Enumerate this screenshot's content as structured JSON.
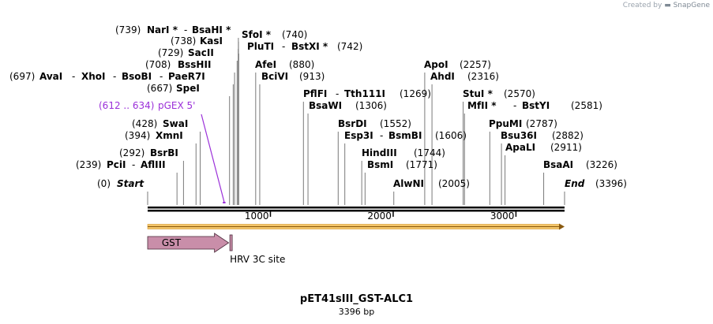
{
  "credit": {
    "prefix": "Created by",
    "brand": "SnapGene"
  },
  "plasmid": {
    "name": "pET41sIII_GST-ALC1",
    "length_label": "3396 bp",
    "length": 3396
  },
  "axis": {
    "ticks": [
      {
        "value": 1000,
        "label": "1000"
      },
      {
        "value": 2000,
        "label": "2000"
      },
      {
        "value": 3000,
        "label": "3000"
      }
    ]
  },
  "label_rows": [
    {
      "left": [
        {
          "text": "(739)",
          "bold": false
        },
        {
          "text": "NarI *",
          "bold": true
        },
        {
          "text": "-",
          "bold": false
        },
        {
          "text": "BsaHI *",
          "bold": true
        }
      ]
    },
    {
      "left": [
        {
          "text": "SfoI *",
          "bold": true
        },
        {
          "text": "(740)",
          "bold": false
        }
      ]
    },
    {
      "left": [
        {
          "text": "(738)",
          "bold": false
        },
        {
          "text": "KasI",
          "bold": true
        }
      ]
    },
    {
      "left": [
        {
          "text": "PluTI",
          "bold": true
        },
        {
          "text": "-",
          "bold": false
        },
        {
          "text": "BstXI *",
          "bold": true
        },
        {
          "text": "(742)",
          "bold": false
        }
      ]
    },
    {
      "left": [
        {
          "text": "(729)",
          "bold": false
        },
        {
          "text": "SacII",
          "bold": true
        }
      ]
    },
    {
      "left": [
        {
          "text": "(708)",
          "bold": false
        },
        {
          "text": "BssHII",
          "bold": true
        }
      ]
    },
    {
      "left": [
        {
          "text": "AfeI",
          "bold": true
        },
        {
          "text": "(880)",
          "bold": false
        }
      ]
    },
    {
      "left": [
        {
          "text": "ApoI",
          "bold": true
        },
        {
          "text": "(2257)",
          "bold": false
        }
      ]
    },
    {
      "left": [
        {
          "text": "(697)",
          "bold": false
        },
        {
          "text": "AvaI",
          "bold": true
        },
        {
          "text": "-",
          "bold": false
        },
        {
          "text": "XhoI",
          "bold": true
        },
        {
          "text": "-",
          "bold": false
        },
        {
          "text": "BsoBI",
          "bold": true
        },
        {
          "text": "-",
          "bold": false
        },
        {
          "text": "PaeR7I",
          "bold": true
        }
      ]
    },
    {
      "left": [
        {
          "text": "BciVI",
          "bold": true
        },
        {
          "text": "(913)",
          "bold": false
        }
      ]
    },
    {
      "left": [
        {
          "text": "AhdI",
          "bold": true
        },
        {
          "text": "(2316)",
          "bold": false
        }
      ]
    },
    {
      "left": [
        {
          "text": "(667)",
          "bold": false
        },
        {
          "text": "SpeI",
          "bold": true
        }
      ]
    },
    {
      "left": [
        {
          "text": "PflFI",
          "bold": true
        },
        {
          "text": "-",
          "bold": false
        },
        {
          "text": "Tth111I",
          "bold": true
        },
        {
          "text": "(1269)",
          "bold": false
        }
      ]
    },
    {
      "left": [
        {
          "text": "StuI *",
          "bold": true
        },
        {
          "text": "(2570)",
          "bold": false
        }
      ]
    },
    {
      "left": [
        {
          "text": "BsaWI",
          "bold": true
        },
        {
          "text": "(1306)",
          "bold": false
        }
      ]
    },
    {
      "left": [
        {
          "text": "MfII *",
          "bold": true
        },
        {
          "text": "-",
          "bold": false
        },
        {
          "text": "BstYI",
          "bold": true
        },
        {
          "text": "(2581)",
          "bold": false
        }
      ]
    },
    {
      "left": [
        {
          "text": "(612 .. 634)",
          "bold": false
        },
        {
          "text": "pGEX 5'",
          "bold": false
        }
      ]
    },
    {
      "left": [
        {
          "text": "(428)",
          "bold": false
        },
        {
          "text": "SwaI",
          "bold": true
        }
      ]
    },
    {
      "left": [
        {
          "text": "BsrDI",
          "bold": true
        },
        {
          "text": "(1552)",
          "bold": false
        }
      ]
    },
    {
      "left": [
        {
          "text": "PpuMI",
          "bold": true
        },
        {
          "text": "(2787)",
          "bold": false
        }
      ]
    },
    {
      "left": [
        {
          "text": "(394)",
          "bold": false
        },
        {
          "text": "XmnI",
          "bold": true
        }
      ]
    },
    {
      "left": [
        {
          "text": "Esp3I",
          "bold": true
        },
        {
          "text": "-",
          "bold": false
        },
        {
          "text": "BsmBI",
          "bold": true
        },
        {
          "text": "(1606)",
          "bold": false
        }
      ]
    },
    {
      "left": [
        {
          "text": "Bsu36I",
          "bold": true
        },
        {
          "text": "(2882)",
          "bold": false
        }
      ]
    },
    {
      "left": [
        {
          "text": "ApaLI",
          "bold": true
        },
        {
          "text": "(2911)",
          "bold": false
        }
      ]
    },
    {
      "left": [
        {
          "text": "(292)",
          "bold": false
        },
        {
          "text": "BsrBI",
          "bold": true
        }
      ]
    },
    {
      "left": [
        {
          "text": "HindIII",
          "bold": true
        },
        {
          "text": "(1744)",
          "bold": false
        }
      ]
    },
    {
      "left": [
        {
          "text": "(239)",
          "bold": false
        },
        {
          "text": "PciI",
          "bold": true
        },
        {
          "text": "-",
          "bold": false
        },
        {
          "text": "AflIII",
          "bold": true
        }
      ]
    },
    {
      "left": [
        {
          "text": "BsmI",
          "bold": true
        },
        {
          "text": "(1771)",
          "bold": false
        }
      ]
    },
    {
      "left": [
        {
          "text": "BsaAI",
          "bold": true
        },
        {
          "text": "(3226)",
          "bold": false
        }
      ]
    },
    {
      "left": [
        {
          "text": "(0)",
          "bold": false
        },
        {
          "text": "Start",
          "bold": true
        }
      ]
    },
    {
      "left": [
        {
          "text": "AlwNI",
          "bold": true
        },
        {
          "text": "(2005)",
          "bold": false
        }
      ]
    },
    {
      "left": [
        {
          "text": "End",
          "bold": true
        },
        {
          "text": "(3396)",
          "bold": false
        }
      ]
    }
  ],
  "sites": [
    {
      "pos": 0
    },
    {
      "pos": 239
    },
    {
      "pos": 292
    },
    {
      "pos": 394
    },
    {
      "pos": 428
    },
    {
      "pos": 667
    },
    {
      "pos": 697
    },
    {
      "pos": 708
    },
    {
      "pos": 729
    },
    {
      "pos": 738
    },
    {
      "pos": 739
    },
    {
      "pos": 740
    },
    {
      "pos": 742
    },
    {
      "pos": 880
    },
    {
      "pos": 913
    },
    {
      "pos": 1269
    },
    {
      "pos": 1306
    },
    {
      "pos": 1552
    },
    {
      "pos": 1606
    },
    {
      "pos": 1744
    },
    {
      "pos": 1771
    },
    {
      "pos": 2005
    },
    {
      "pos": 2257
    },
    {
      "pos": 2316
    },
    {
      "pos": 2570
    },
    {
      "pos": 2581
    },
    {
      "pos": 2787
    },
    {
      "pos": 2882
    },
    {
      "pos": 2911
    },
    {
      "pos": 3226
    },
    {
      "pos": 3396
    }
  ],
  "primer": {
    "start": 612,
    "end": 634,
    "color": "#9b30d9"
  },
  "features": [
    {
      "label": "GST",
      "start": 0,
      "end": 660,
      "color": "#c98ea9"
    },
    {
      "label": "HRV 3C site",
      "start": 676,
      "end": 700,
      "color": "#c98ea9"
    }
  ],
  "colors": {
    "orf": "#f2c468",
    "line": "#000000",
    "site_line": "#7a7a7a"
  }
}
